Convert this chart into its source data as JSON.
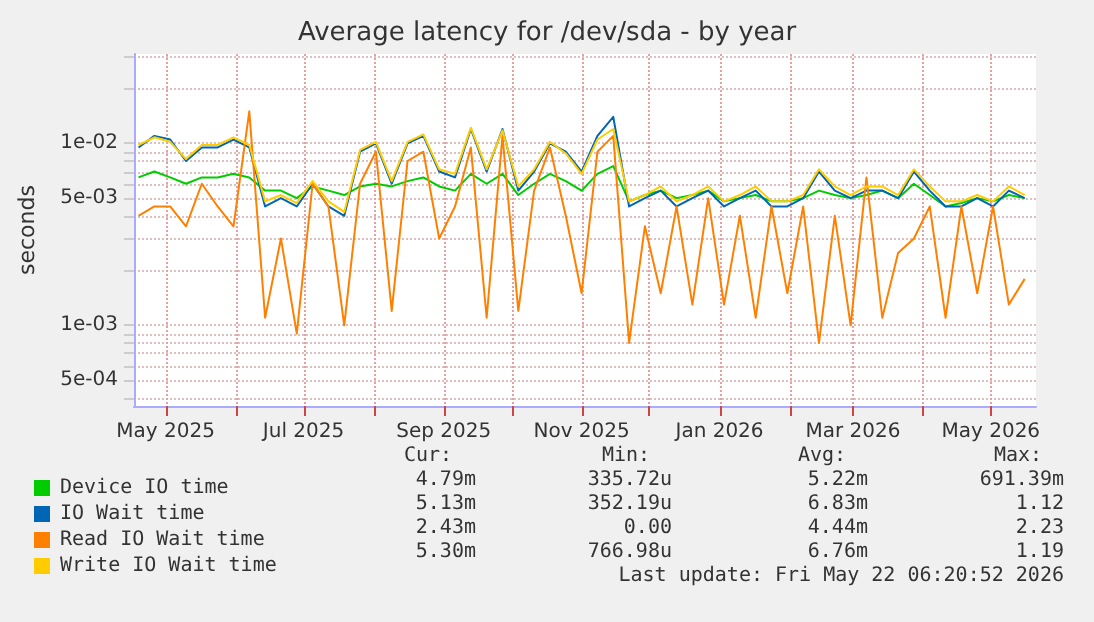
{
  "chart_data": {
    "type": "line",
    "title": "Average latency for /dev/sda - by year",
    "ylabel": "seconds",
    "log": "y",
    "grid": true,
    "legend": "bottom",
    "marker": "none",
    "line_style": "solid",
    "xlim": [
      "2025-04-17",
      "2026-05-21"
    ],
    "xticks": [
      {
        "value": "2025-05-01",
        "label": "May 2025"
      },
      {
        "value": "2025-06-01",
        "label": null
      },
      {
        "value": "2025-07-01",
        "label": "Jul 2025"
      },
      {
        "value": "2025-08-01",
        "label": null
      },
      {
        "value": "2025-09-01",
        "label": "Sep 2025"
      },
      {
        "value": "2025-10-01",
        "label": null
      },
      {
        "value": "2025-11-01",
        "label": "Nov 2025"
      },
      {
        "value": "2025-12-01",
        "label": null
      },
      {
        "value": "2026-01-01",
        "label": "Jan 2026"
      },
      {
        "value": "2026-02-01",
        "label": null
      },
      {
        "value": "2026-03-01",
        "label": "Mar 2026"
      },
      {
        "value": "2026-04-01",
        "label": null
      },
      {
        "value": "2026-05-01",
        "label": "May 2026"
      }
    ],
    "ylim": [
      0.00036,
      0.031
    ],
    "yticks": [
      {
        "value": 0.0004,
        "label": null
      },
      {
        "value": 0.0005,
        "label": "5e-04"
      },
      {
        "value": 0.0006,
        "label": null
      },
      {
        "value": 0.0007,
        "label": null
      },
      {
        "value": 0.0008,
        "label": null
      },
      {
        "value": 0.0009,
        "label": null
      },
      {
        "value": 0.001,
        "label": "1e-03"
      },
      {
        "value": 0.002,
        "label": null
      },
      {
        "value": 0.003,
        "label": null
      },
      {
        "value": 0.004,
        "label": null
      },
      {
        "value": 0.005,
        "label": "5e-03"
      },
      {
        "value": 0.006,
        "label": null
      },
      {
        "value": 0.007,
        "label": null
      },
      {
        "value": 0.008,
        "label": null
      },
      {
        "value": 0.009,
        "label": null
      },
      {
        "value": 0.01,
        "label": "1e-02"
      },
      {
        "value": 0.02,
        "label": null
      },
      {
        "value": 0.03,
        "label": null
      }
    ],
    "x": [
      "2025-04-19",
      "2025-04-26",
      "2025-05-03",
      "2025-05-10",
      "2025-05-17",
      "2025-05-24",
      "2025-05-31",
      "2025-06-07",
      "2025-06-14",
      "2025-06-21",
      "2025-06-28",
      "2025-07-05",
      "2025-07-12",
      "2025-07-19",
      "2025-07-26",
      "2025-08-02",
      "2025-08-09",
      "2025-08-16",
      "2025-08-23",
      "2025-08-30",
      "2025-09-06",
      "2025-09-13",
      "2025-09-20",
      "2025-09-27",
      "2025-10-04",
      "2025-10-11",
      "2025-10-18",
      "2025-10-25",
      "2025-11-01",
      "2025-11-08",
      "2025-11-15",
      "2025-11-22",
      "2025-11-29",
      "2025-12-06",
      "2025-12-13",
      "2025-12-20",
      "2025-12-27",
      "2026-01-03",
      "2026-01-10",
      "2026-01-17",
      "2026-01-24",
      "2026-01-31",
      "2026-02-07",
      "2026-02-14",
      "2026-02-21",
      "2026-02-28",
      "2026-03-07",
      "2026-03-14",
      "2026-03-21",
      "2026-03-28",
      "2026-04-04",
      "2026-04-11",
      "2026-04-18",
      "2026-04-25",
      "2026-05-02",
      "2026-05-09",
      "2026-05-16"
    ],
    "series": [
      {
        "name": "Device IO time",
        "color": "#00cc00",
        "values": [
          0.0065,
          0.007,
          0.0065,
          0.006,
          0.0065,
          0.0065,
          0.0068,
          0.0065,
          0.0055,
          0.0055,
          0.005,
          0.0058,
          0.0055,
          0.0052,
          0.0058,
          0.006,
          0.0058,
          0.0062,
          0.0065,
          0.0058,
          0.0055,
          0.0068,
          0.006,
          0.0068,
          0.0052,
          0.006,
          0.0068,
          0.0062,
          0.0055,
          0.0068,
          0.0075,
          0.0048,
          0.0052,
          0.0055,
          0.005,
          0.0052,
          0.0055,
          0.0048,
          0.005,
          0.0052,
          0.0048,
          0.0048,
          0.005,
          0.0055,
          0.0052,
          0.005,
          0.0052,
          0.0055,
          0.005,
          0.006,
          0.0052,
          0.0045,
          0.0047,
          0.005,
          0.0048,
          0.0052,
          0.005
        ]
      },
      {
        "name": "IO Wait time",
        "color": "#0066b3",
        "values": [
          0.0095,
          0.011,
          0.0105,
          0.008,
          0.0095,
          0.0095,
          0.0105,
          0.0095,
          0.0045,
          0.005,
          0.0045,
          0.006,
          0.0045,
          0.004,
          0.009,
          0.01,
          0.006,
          0.01,
          0.011,
          0.007,
          0.0065,
          0.012,
          0.007,
          0.012,
          0.0055,
          0.007,
          0.01,
          0.009,
          0.007,
          0.011,
          0.014,
          0.0045,
          0.005,
          0.0055,
          0.0045,
          0.005,
          0.0055,
          0.0045,
          0.005,
          0.0055,
          0.0045,
          0.0045,
          0.005,
          0.007,
          0.0055,
          0.005,
          0.0055,
          0.0055,
          0.005,
          0.007,
          0.0055,
          0.0045,
          0.0045,
          0.005,
          0.0045,
          0.0055,
          0.005
        ]
      },
      {
        "name": "Read IO Wait time",
        "color": "#ff8000",
        "values": [
          0.004,
          0.0045,
          0.0045,
          0.0035,
          0.006,
          0.0045,
          0.0035,
          0.015,
          0.0011,
          0.003,
          0.0009,
          0.006,
          0.0045,
          0.001,
          0.006,
          0.009,
          0.0012,
          0.008,
          0.009,
          0.003,
          0.0045,
          0.0095,
          0.0011,
          0.011,
          0.0012,
          0.0055,
          0.0095,
          0.004,
          0.0015,
          0.009,
          0.011,
          0.0008,
          0.0035,
          0.0015,
          0.0045,
          0.0013,
          0.005,
          0.0013,
          0.004,
          0.0011,
          0.0045,
          0.0015,
          0.0045,
          0.0008,
          0.004,
          0.001,
          0.0065,
          0.0011,
          0.0025,
          0.003,
          0.0045,
          0.0011,
          0.0045,
          0.0015,
          0.0045,
          0.0013,
          0.0018
        ]
      },
      {
        "name": "Write IO Wait time",
        "color": "#ffcc00",
        "values": [
          0.0098,
          0.0108,
          0.0102,
          0.0082,
          0.0098,
          0.0098,
          0.0108,
          0.0098,
          0.0048,
          0.0052,
          0.0047,
          0.0062,
          0.0048,
          0.0042,
          0.0092,
          0.0102,
          0.0062,
          0.0102,
          0.0112,
          0.0072,
          0.0068,
          0.0122,
          0.0072,
          0.0118,
          0.0058,
          0.0072,
          0.0102,
          0.0088,
          0.0068,
          0.0105,
          0.012,
          0.0048,
          0.0052,
          0.0058,
          0.0048,
          0.0052,
          0.0058,
          0.0048,
          0.0052,
          0.0058,
          0.0048,
          0.0048,
          0.0052,
          0.0072,
          0.0058,
          0.0052,
          0.0058,
          0.0058,
          0.0052,
          0.0072,
          0.0058,
          0.0048,
          0.0048,
          0.0052,
          0.0048,
          0.0058,
          0.0052
        ]
      }
    ],
    "annotations": [
      "Cur:",
      "Min:",
      "Avg:",
      "Max:",
      "4.79m",
      "335.72u",
      "5.22m",
      "691.39m",
      "5.13m",
      "352.19u",
      "6.83m",
      "1.12",
      "2.43m",
      "0.00",
      "4.44m",
      "2.23",
      "5.30m",
      "766.98u",
      "6.76m",
      "1.19",
      "Last update: Fri May 22 06:20:52 2026"
    ]
  }
}
